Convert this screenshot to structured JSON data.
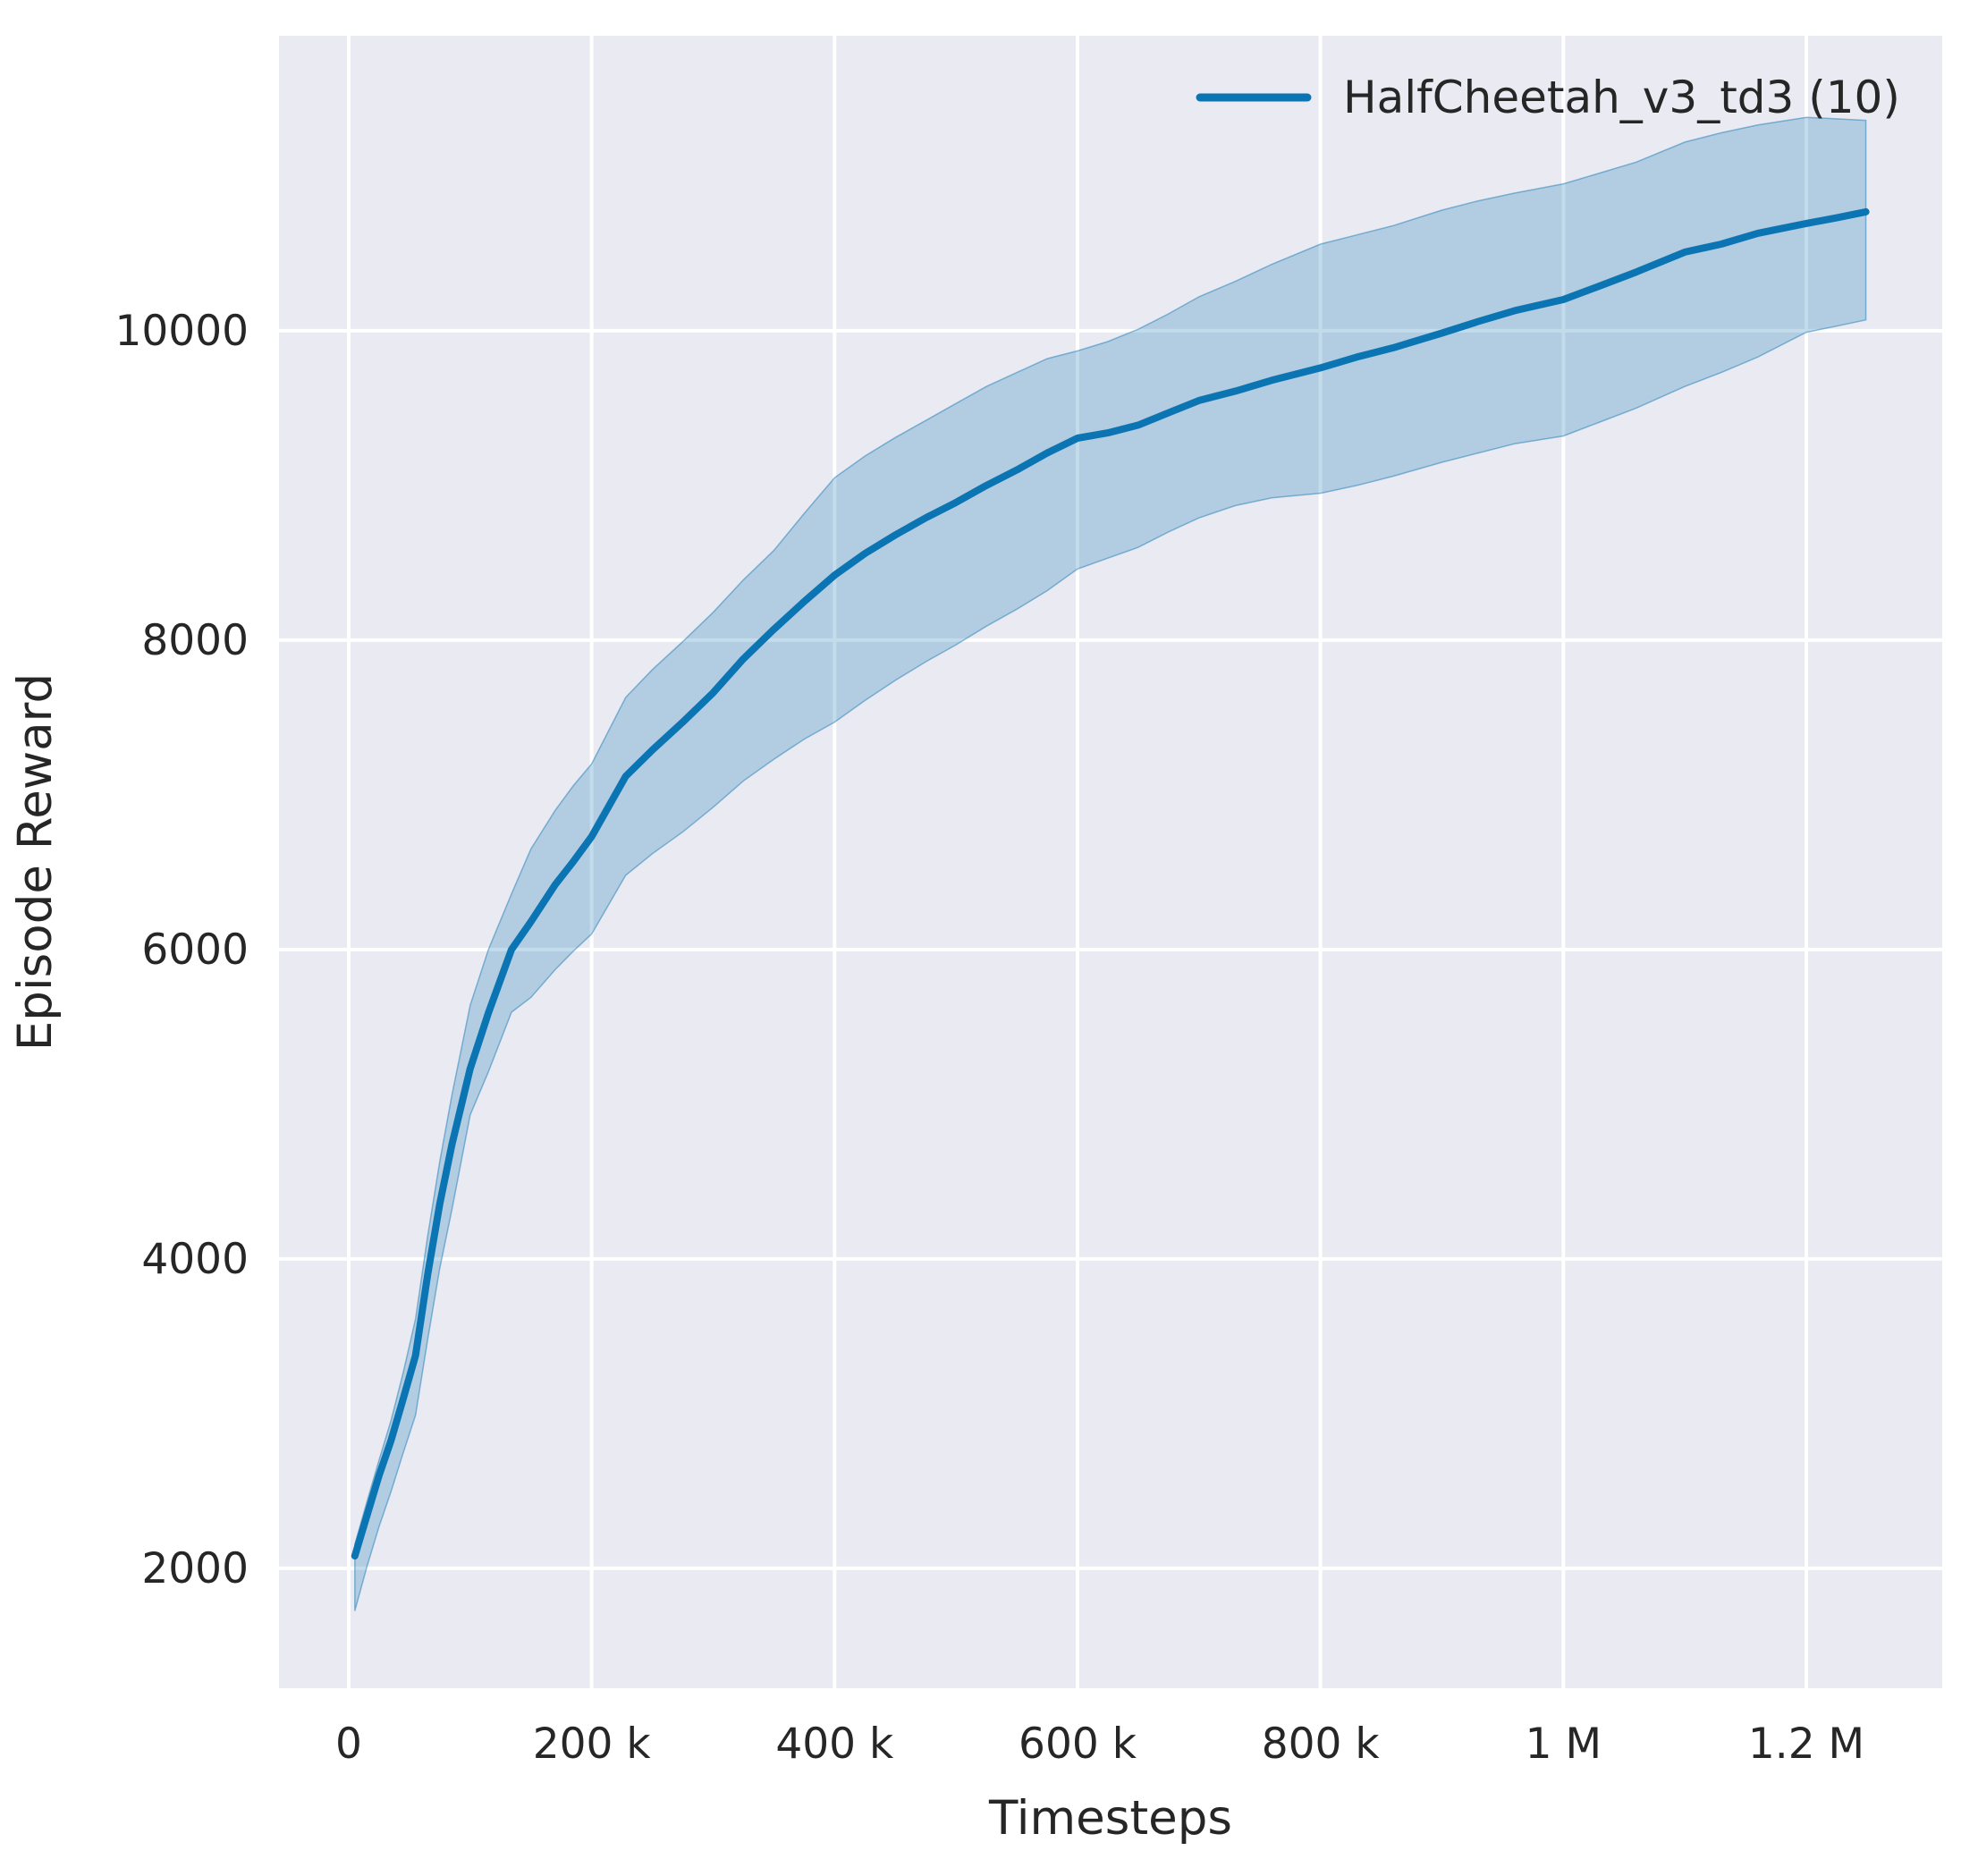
{
  "chart_data": {
    "type": "line",
    "title": "",
    "xlabel": "Timesteps",
    "ylabel": "Episode Reward",
    "legend_label": "HalfCheetah_v3_td3 (10)",
    "legend_position": "upper right",
    "grid": true,
    "plot_bg_color": "#eaeaf2",
    "grid_color": "#ffffff",
    "line_color": "#0b74b2",
    "band_opacity": 0.25,
    "text_color": "#262626",
    "xlim": [
      -57400,
      1311900
    ],
    "ylim": [
      1225,
      11907
    ],
    "x_ticks": [
      0,
      200000,
      400000,
      600000,
      800000,
      1000000,
      1200000
    ],
    "x_tick_labels": [
      "0",
      "200 k",
      "400 k",
      "600 k",
      "800 k",
      "1 M",
      "1.2 M"
    ],
    "y_ticks": [
      2000,
      4000,
      6000,
      8000,
      10000
    ],
    "y_tick_labels": [
      "2000",
      "4000",
      "6000",
      "8000",
      "10000"
    ],
    "series": [
      {
        "name": "HalfCheetah_v3_td3 (10)",
        "x": [
          5000,
          15000,
          25000,
          35000,
          45000,
          55000,
          65000,
          75000,
          85000,
          100000,
          115000,
          134000,
          150000,
          170000,
          185000,
          200000,
          228000,
          250000,
          275000,
          300000,
          325000,
          350000,
          375000,
          400000,
          425000,
          450000,
          475000,
          500000,
          525000,
          550000,
          575000,
          600000,
          625000,
          650000,
          675000,
          700000,
          730000,
          760000,
          800000,
          830000,
          860000,
          900000,
          930000,
          960000,
          1000000,
          1030000,
          1060000,
          1100000,
          1130000,
          1160000,
          1200000,
          1225000,
          1249000
        ],
        "mean": [
          2080,
          2340,
          2600,
          2830,
          3100,
          3376,
          3900,
          4356,
          4740,
          5230,
          5590,
          6000,
          6180,
          6420,
          6570,
          6730,
          7120,
          7290,
          7470,
          7660,
          7880,
          8070,
          8250,
          8420,
          8560,
          8680,
          8790,
          8890,
          9000,
          9100,
          9210,
          9306,
          9340,
          9390,
          9470,
          9549,
          9610,
          9680,
          9760,
          9830,
          9890,
          9985,
          10060,
          10130,
          10202,
          10290,
          10380,
          10509,
          10560,
          10630,
          10694,
          10730,
          10769
        ],
        "lower": [
          1725,
          2010,
          2270,
          2500,
          2750,
          2990,
          3480,
          3940,
          4320,
          4930,
          5210,
          5595,
          5690,
          5870,
          5990,
          6100,
          6480,
          6620,
          6760,
          6920,
          7090,
          7230,
          7360,
          7470,
          7610,
          7740,
          7860,
          7970,
          8090,
          8200,
          8320,
          8460,
          8530,
          8600,
          8700,
          8790,
          8870,
          8920,
          8950,
          9000,
          9060,
          9150,
          9210,
          9270,
          9320,
          9410,
          9500,
          9640,
          9730,
          9830,
          9990,
          10030,
          10070
        ],
        "upper": [
          2155,
          2430,
          2700,
          2960,
          3270,
          3613,
          4150,
          4630,
          5060,
          5640,
          6000,
          6360,
          6650,
          6900,
          7060,
          7200,
          7630,
          7810,
          7990,
          8180,
          8390,
          8580,
          8820,
          9050,
          9190,
          9310,
          9420,
          9530,
          9640,
          9730,
          9820,
          9870,
          9930,
          10010,
          10110,
          10220,
          10320,
          10430,
          10560,
          10620,
          10680,
          10780,
          10840,
          10890,
          10950,
          11020,
          11090,
          11220,
          11280,
          11330,
          11380,
          11370,
          11360
        ]
      }
    ]
  }
}
